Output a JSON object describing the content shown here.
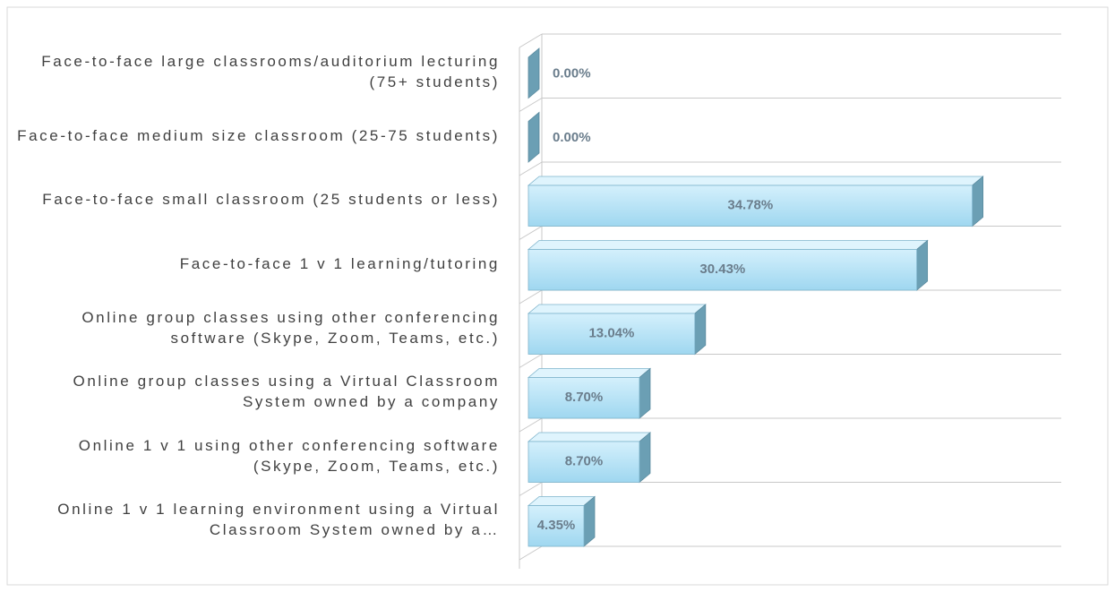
{
  "chart_data": {
    "type": "bar3d_horizontal",
    "categories": [
      "Face-to-face large classrooms/auditorium lecturing (75+ students)",
      "Face-to-face medium size classroom (25-75 students)",
      "Face-to-face small classroom (25 students or less)",
      "Face-to-face 1 v 1 learning/tutoring",
      "Online group classes using other conferencing software (Skype, Zoom, Teams, etc.)",
      "Online group classes using a Virtual Classroom System owned by a company",
      "Online 1 v 1 using other conferencing software (Skype, Zoom, Teams, etc.)",
      "Online 1 v 1 learning environment using a Virtual Classroom System owned by a…"
    ],
    "values": [
      0,
      0,
      34.78,
      30.43,
      13.04,
      8.7,
      8.7,
      4.35
    ],
    "value_labels": [
      "0.00%",
      "0.00%",
      "34.78%",
      "30.43%",
      "13.04%",
      "8.70%",
      "8.70%",
      "4.35%"
    ],
    "color": "#a9dcf2",
    "xlim": [
      0,
      40
    ]
  }
}
